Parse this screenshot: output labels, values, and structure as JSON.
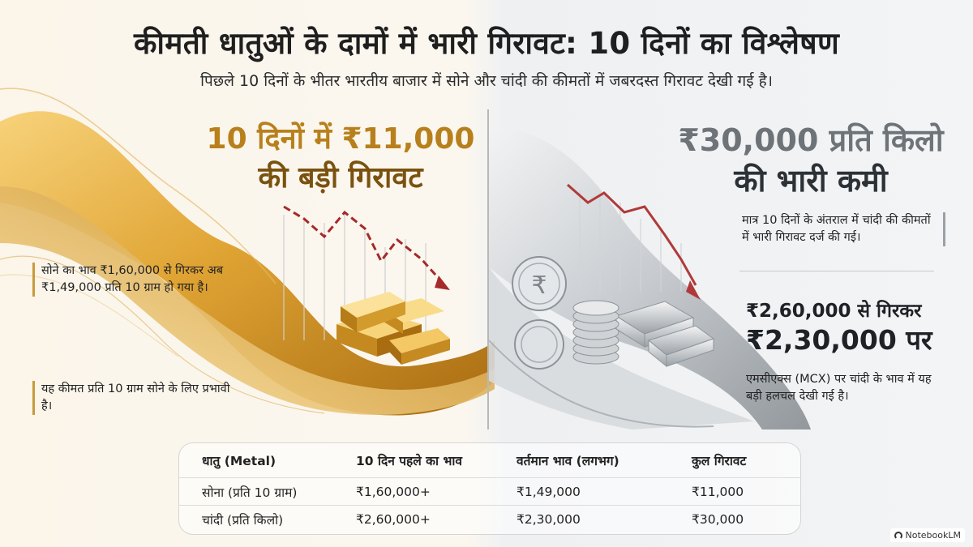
{
  "header": {
    "title": "कीमती धातुओं के दामों में भारी गिरावट: 10 दिनों का विश्लेषण",
    "subtitle": "पिछले 10 दिनों के भीतर भारतीय बाजार में सोने और चांदी की कीमतों में जबरदस्त गिरावट देखी गई है।"
  },
  "gold": {
    "headline_line1": "10 दिनों में ₹11,000",
    "headline_line2": "की बड़ी गिरावट",
    "note1": "सोने का भाव ₹1,60,000 से गिरकर अब ₹1,49,000 प्रति 10 ग्राम हो गया है।",
    "note2": "यह कीमत प्रति 10 ग्राम सोने के लिए प्रभावी है।"
  },
  "silver": {
    "headline_line1": "₹30,000 प्रति किलो",
    "headline_line2": "की भारी कमी",
    "note1": "मात्र 10 दिनों के अंतराल में चांदी की कीमतों में भारी गिरावट दर्ज की गई।",
    "price_line1": "₹2,60,000 से गिरकर",
    "price_line2": "₹2,30,000 पर",
    "note2": "एमसीएक्स (MCX) पर चांदी के भाव में यह बड़ी हलचल देखी गई है।"
  },
  "table": {
    "headers": [
      "धातु (Metal)",
      "10 दिन पहले का भाव",
      "वर्तमान भाव (लगभग)",
      "कुल गिरावट"
    ],
    "rows": [
      [
        "सोना (प्रति 10 ग्राम)",
        "₹1,60,000+",
        "₹1,49,000",
        "₹11,000"
      ],
      [
        "चांदी (प्रति किलो)",
        "₹2,60,000+",
        "₹2,30,000",
        "₹30,000"
      ]
    ]
  },
  "branding": {
    "label": "NotebookLM"
  },
  "colors": {
    "gold_accent": "#b8801c",
    "silver_accent": "#6e7378",
    "decline_red": "#a52a2a"
  }
}
